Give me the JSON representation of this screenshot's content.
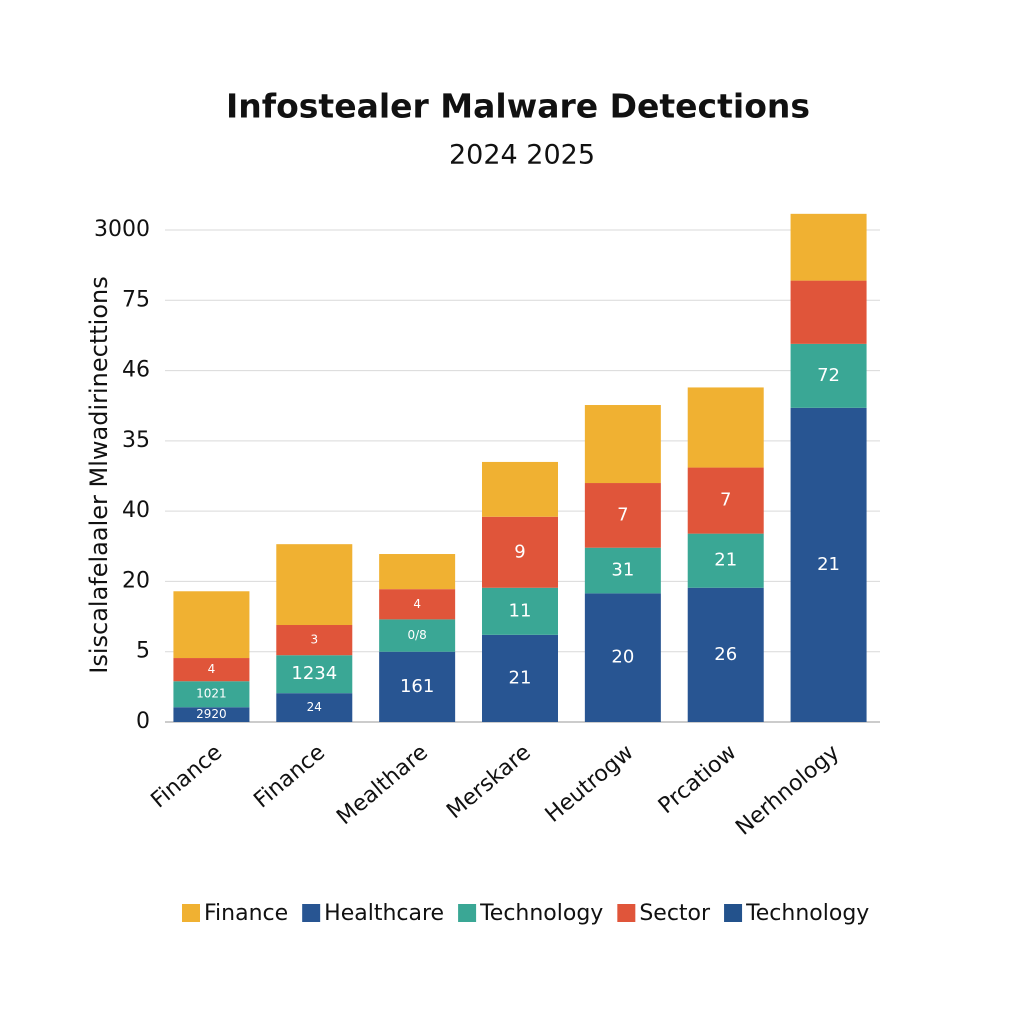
{
  "chart_data": {
    "type": "stacked_bar",
    "title": "Infostealer Malware Detections",
    "subtitle": "2024 2025",
    "y_axis_label": "Isiscalafelaaler Mlwadirinecttions",
    "categories": [
      "Finance",
      "Finance",
      "Mealthare",
      "Merskare",
      "Heutrogw",
      "Prcatiow",
      "Nerhnology"
    ],
    "ylim": [
      0,
      7
    ],
    "yticks": [
      {
        "value": 0,
        "label": "0"
      },
      {
        "value": 1,
        "label": "5"
      },
      {
        "value": 2,
        "label": "20"
      },
      {
        "value": 3,
        "label": "40"
      },
      {
        "value": 4,
        "label": "35"
      },
      {
        "value": 5,
        "label": "46"
      },
      {
        "value": 6,
        "label": "75"
      },
      {
        "value": 7,
        "label": "3000"
      }
    ],
    "grid": true,
    "series": [
      {
        "name": "Finance",
        "color": "#f0b132",
        "values": [
          0.95,
          1.15,
          0.5,
          0.78,
          1.11,
          1.14,
          0.95
        ],
        "labels": [
          null,
          null,
          null,
          null,
          null,
          null,
          null
        ],
        "stack": 3
      },
      {
        "name": "Healthcare",
        "color": "#285592",
        "values": [
          0.21,
          0.41,
          1.0,
          1.24,
          1.83,
          1.91,
          4.47
        ],
        "labels": [
          "2920",
          "24",
          "161",
          "21",
          "20",
          "26",
          "21"
        ],
        "stack": 0
      },
      {
        "name": "Technology",
        "color": "#3aa795",
        "values": [
          0.37,
          0.54,
          0.46,
          0.67,
          0.65,
          0.77,
          0.91
        ],
        "labels": [
          "1021",
          "1234",
          "0/8",
          "11",
          "31",
          "21",
          "72"
        ],
        "stack": 1
      },
      {
        "name": "Sector",
        "color": "#e0553a",
        "values": [
          0.33,
          0.43,
          0.43,
          1.01,
          0.92,
          0.94,
          0.9
        ],
        "labels": [
          "4",
          "3",
          "4",
          "9",
          "7",
          "7",
          null
        ],
        "stack": 2
      },
      {
        "name": "Technology",
        "color": "#23528c",
        "values": [
          null,
          null,
          null,
          null,
          null,
          null,
          null
        ],
        "labels": [
          null,
          null,
          null,
          null,
          null,
          null,
          null
        ],
        "stack": 4
      }
    ]
  }
}
